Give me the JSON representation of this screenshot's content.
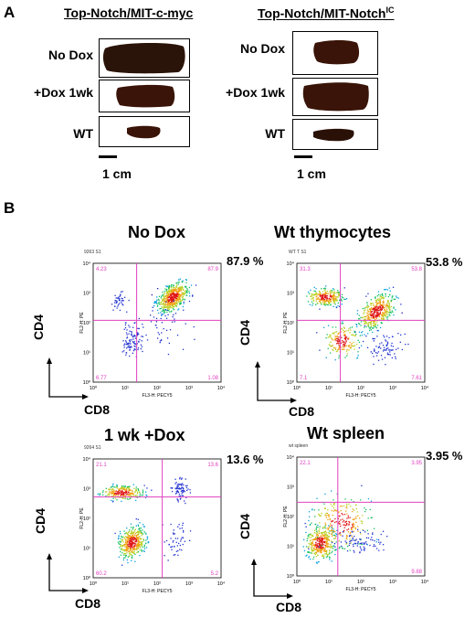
{
  "panel_a": {
    "letter": "A",
    "headers": [
      "Top-Notch/MIT-c-myc",
      "Top-Notch/MIT-Notch"
    ],
    "header_superscript": "IC",
    "rows": [
      "No Dox",
      "+Dox 1wk",
      "WT"
    ],
    "scale_label": "1 cm"
  },
  "panel_b": {
    "letter": "B",
    "plots": [
      {
        "title": "No Dox",
        "sample": "9263 S1",
        "pct": "87.9 %",
        "quad": {
          "ul": "4.23",
          "ur": "87.9",
          "ll": "6.77",
          "lr": "1.08"
        },
        "xlabel": "CD8",
        "ylabel": "CD4",
        "axis_x": "FL3-H: PECY5",
        "axis_y": "FL2-H: PE"
      },
      {
        "title": "Wt thymocytes",
        "sample": "WT T S1",
        "pct": "53.8 %",
        "quad": {
          "ul": "31.3",
          "ur": "53.8",
          "ll": "7.1",
          "lr": "7.61"
        },
        "xlabel": "CD8",
        "ylabel": "CD4",
        "axis_x": "FL3-H: PECY5",
        "axis_y": "FL2-H: PE"
      },
      {
        "title": "1 wk +Dox",
        "sample": "9264 S1",
        "pct": "13.6 %",
        "quad": {
          "ul": "21.1",
          "ur": "13.6",
          "ll": "60.2",
          "lr": "5.2"
        },
        "xlabel": "CD8",
        "ylabel": "CD4",
        "axis_x": "FL3-H: PECY5",
        "axis_y": "FL2-H: PE"
      },
      {
        "title": "Wt spleen",
        "sample": "wt spleen",
        "pct": "3.95 %",
        "quad": {
          "ul": "22.1",
          "ur": "3.95",
          "ll": "",
          "lr": "9.88"
        },
        "xlabel": "CD8",
        "ylabel": "CD4",
        "axis_x": "FL3-H: PECY5",
        "axis_y": "FL2-H: PE"
      }
    ],
    "ticks_x": [
      "10⁰",
      "10¹",
      "10²",
      "10³",
      "10⁴"
    ],
    "ticks_y": [
      "10⁰",
      "10¹",
      "10²",
      "10³",
      "10⁴"
    ]
  },
  "colors": {
    "gate": "#e040c0",
    "tissue": "#2a1108"
  }
}
